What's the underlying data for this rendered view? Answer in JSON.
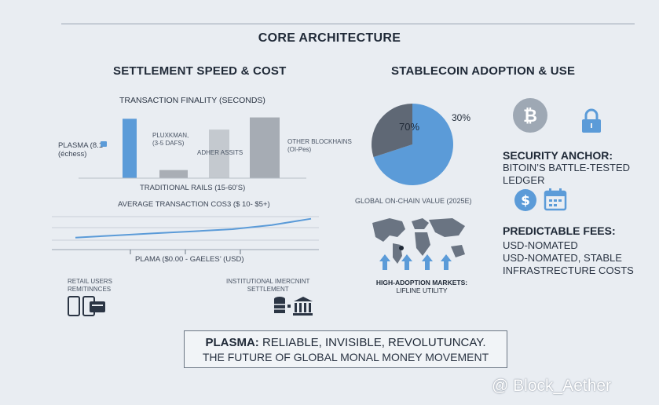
{
  "page_title": "CORE ARCHITECTURE",
  "left": {
    "title": "SETTLEMENT SPEED & COST",
    "finality_title": "TRANSACTION FINALITY (SECONDS)",
    "plasma_label": [
      "PLASMA (8.1-",
      "(échess)"
    ],
    "bar2_label": [
      "PLUXKMAN,",
      "(3-5 DAFS)"
    ],
    "bar3_label": "ADHER ASSITS",
    "bar4_label": [
      "OTHER BLOCKHAINS",
      "(OI-Pes)"
    ],
    "trad_label": "TRADITIONAL RAILS (15-60’S)",
    "cost_title": "AVERAGE TRANSACTION COS3 ($ 10- $5+)",
    "cost_axis_label": "PLAMA ($0.00 - GAELES’ (USD)",
    "retail_label": [
      "RETAIL USERS",
      "REMITINNCES"
    ],
    "institutional_label": [
      "INSTITUTIONAL IMERCNINT",
      "SETTLEMENT"
    ]
  },
  "center": {
    "title": "STABLECOIN ADOPTION & USE",
    "pie_big_label": "70%",
    "pie_small_label": "30%",
    "pie_caption": "GLOBAL ON-CHAIN VALUE (2025E)",
    "map_caption": [
      "HIGH-ADOPTION MARKETS:",
      "LIFLINE UTILITY"
    ]
  },
  "right": {
    "security_title": "SECURITY ANCHOR:",
    "security_sub": "BITOIN’S BATTLE-TESTED LEDGER",
    "fees_title": "PREDICTABLE FEES:",
    "fees_lines": [
      "USD-NOMATED",
      "USD-NOMATED, STABLE",
      "INFRASTRECTURE COSTS"
    ]
  },
  "footer": {
    "bold": "PLASMA:",
    "rest": " RELIABLE, INVISIBLE, REVOLUTUNCAY.",
    "line2": "THE FUTURE OF GLOBAL MONAL MONEY MOVEMENT"
  },
  "watermark": "@ Block_Aether",
  "colors": {
    "accent_blue": "#5b9bd8",
    "gray_dark": "#5f6875",
    "gray_bar": "#a6acb4",
    "background": "#e9edf2"
  },
  "chart_data": [
    {
      "type": "bar",
      "title": "TRANSACTION FINALITY (SECONDS)",
      "categories": [
        "PLASMA",
        "PLUXKMAN",
        "ADHER ASSITS",
        "OTHER BLOCKHAINS"
      ],
      "values": [
        88,
        12,
        72,
        90
      ]
    },
    {
      "type": "line",
      "title": "AVERAGE TRANSACTION COS3 ($ 10- $5+)",
      "x": [
        0,
        1,
        2,
        3,
        4,
        5,
        6
      ],
      "values": [
        4,
        6,
        8,
        10,
        12,
        16,
        22
      ]
    },
    {
      "type": "pie",
      "labels": [
        "70%",
        "30%"
      ],
      "values": [
        70,
        30
      ],
      "colors": [
        "#5b9bd8",
        "#5f6875"
      ]
    }
  ]
}
